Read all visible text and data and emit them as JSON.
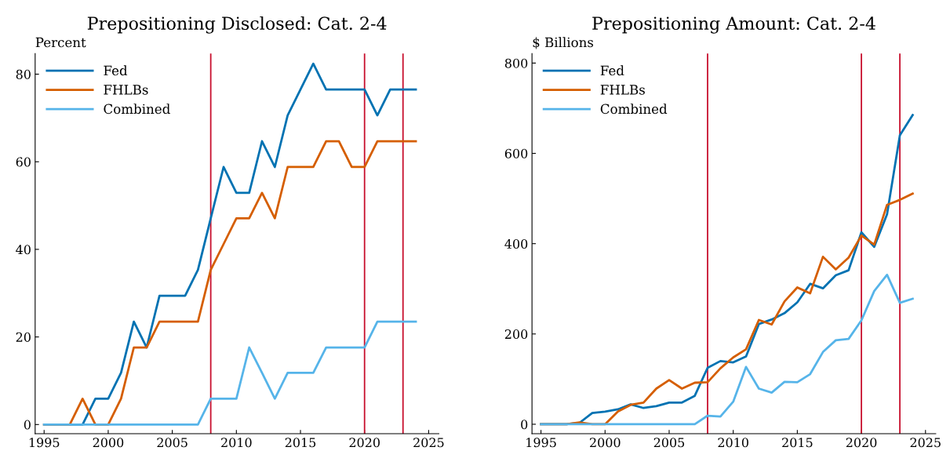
{
  "chart_data": [
    {
      "type": "line",
      "title": "Prepositioning Disclosed: Cat. 2-4",
      "ylabel": "Percent",
      "x": [
        1995,
        1996,
        1997,
        1998,
        1999,
        2000,
        2001,
        2002,
        2003,
        2004,
        2005,
        2006,
        2007,
        2008,
        2009,
        2010,
        2011,
        2012,
        2013,
        2014,
        2015,
        2016,
        2017,
        2018,
        2019,
        2020,
        2021,
        2022,
        2023,
        2024
      ],
      "series": [
        {
          "name": "Fed",
          "color": "#0072b2",
          "values": [
            0,
            0,
            0,
            0,
            5.9,
            5.9,
            11.8,
            23.5,
            17.6,
            29.4,
            29.4,
            29.4,
            35.3,
            47.1,
            58.8,
            52.9,
            52.9,
            64.7,
            58.8,
            70.6,
            76.5,
            82.4,
            76.5,
            76.5,
            76.5,
            76.5,
            70.6,
            76.5,
            76.5,
            76.5
          ]
        },
        {
          "name": "FHLBs",
          "color": "#d55e00",
          "values": [
            0,
            0,
            0,
            5.9,
            0,
            0,
            5.9,
            17.6,
            17.6,
            23.5,
            23.5,
            23.5,
            23.5,
            35.3,
            41.2,
            47.1,
            47.1,
            52.9,
            47.1,
            58.8,
            58.8,
            58.8,
            64.7,
            64.7,
            58.8,
            58.8,
            64.7,
            64.7,
            64.7,
            64.7
          ]
        },
        {
          "name": "Combined",
          "color": "#56b4e9",
          "values": [
            0,
            0,
            0,
            0,
            0,
            0,
            0,
            0,
            0,
            0,
            0,
            0,
            0,
            5.9,
            5.9,
            5.9,
            17.6,
            11.8,
            5.9,
            11.8,
            11.8,
            11.8,
            17.6,
            17.6,
            17.6,
            17.6,
            23.5,
            23.5,
            23.5,
            23.5
          ]
        }
      ],
      "xlim": [
        1994.3,
        2025.8
      ],
      "xticks": [
        1995,
        2000,
        2005,
        2010,
        2015,
        2020,
        2025
      ],
      "ylim": [
        -2.1,
        84.7
      ],
      "yticks": [
        0,
        20,
        40,
        60,
        80
      ],
      "ref_lines": [
        {
          "axis": "x",
          "value": 2008,
          "color": "#c8102e"
        },
        {
          "axis": "x",
          "value": 2020,
          "color": "#c8102e"
        },
        {
          "axis": "x",
          "value": 2023,
          "color": "#c8102e"
        }
      ],
      "grid": false,
      "legend": "top left"
    },
    {
      "type": "line",
      "title": "Prepositioning Amount: Cat. 2-4",
      "ylabel": "$ Billions",
      "x": [
        1995,
        1996,
        1997,
        1998,
        1999,
        2000,
        2001,
        2002,
        2003,
        2004,
        2005,
        2006,
        2007,
        2008,
        2009,
        2010,
        2011,
        2012,
        2013,
        2014,
        2015,
        2016,
        2017,
        2018,
        2019,
        2020,
        2021,
        2022,
        2023,
        2024
      ],
      "series": [
        {
          "name": "Fed",
          "color": "#0072b2",
          "values": [
            0,
            0,
            0,
            3,
            25,
            28,
            33,
            44,
            36,
            40,
            48,
            48,
            63,
            125,
            140,
            137,
            150,
            222,
            232,
            246,
            270,
            311,
            301,
            330,
            341,
            425,
            393,
            465,
            640,
            685
          ]
        },
        {
          "name": "FHLBs",
          "color": "#d55e00",
          "values": [
            0,
            0,
            0,
            4,
            0,
            0,
            28,
            43,
            48,
            79,
            98,
            79,
            92,
            93,
            124,
            148,
            166,
            231,
            221,
            272,
            303,
            290,
            371,
            343,
            369,
            418,
            398,
            486,
            497,
            511
          ]
        },
        {
          "name": "Combined",
          "color": "#56b4e9",
          "values": [
            0,
            0,
            0,
            0,
            0,
            0,
            0,
            0,
            0,
            0,
            0,
            0,
            0,
            19,
            17,
            50,
            127,
            79,
            70,
            94,
            93,
            111,
            160,
            186,
            189,
            230,
            295,
            331,
            269,
            278
          ]
        }
      ],
      "xlim": [
        1994.3,
        2025.8
      ],
      "xticks": [
        1995,
        2000,
        2005,
        2010,
        2015,
        2020,
        2025
      ],
      "ylim": [
        -21,
        821
      ],
      "yticks": [
        0,
        200,
        400,
        600,
        800
      ],
      "ref_lines": [
        {
          "axis": "x",
          "value": 2008,
          "color": "#c8102e"
        },
        {
          "axis": "x",
          "value": 2020,
          "color": "#c8102e"
        },
        {
          "axis": "x",
          "value": 2023,
          "color": "#c8102e"
        }
      ],
      "grid": false,
      "legend": "top left"
    }
  ]
}
